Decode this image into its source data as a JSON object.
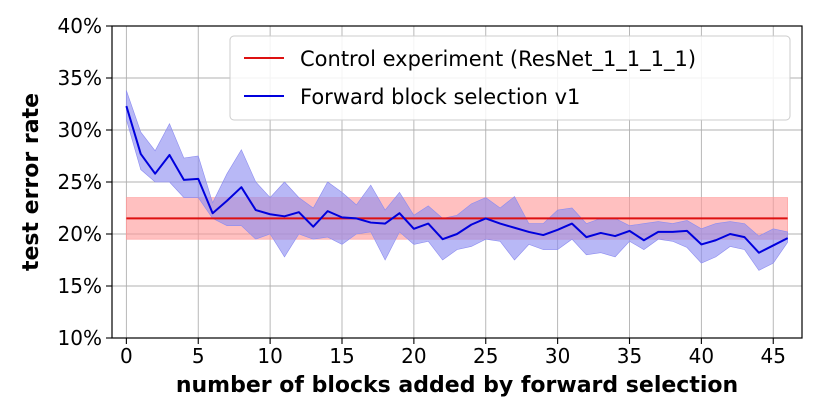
{
  "chart_data": {
    "type": "line",
    "xlabel": "number of blocks added by forward selection",
    "ylabel": "test error rate",
    "xlim": [
      -1,
      47
    ],
    "ylim": [
      10,
      40
    ],
    "xticks": [
      0,
      5,
      10,
      15,
      20,
      25,
      30,
      35,
      40,
      45
    ],
    "yticks": [
      10,
      15,
      20,
      25,
      30,
      35,
      40
    ],
    "yticklabels": [
      "10%",
      "15%",
      "20%",
      "25%",
      "30%",
      "35%",
      "40%"
    ],
    "grid": true,
    "legend_position": "top-right",
    "series": [
      {
        "name": "Control experiment (ResNet_1_1_1_1)",
        "color": "#dd1111",
        "band_color": "#ff9999",
        "x": [
          0,
          46
        ],
        "values": [
          21.5,
          21.5
        ],
        "lower": [
          19.5,
          19.5
        ],
        "upper": [
          23.5,
          23.5
        ]
      },
      {
        "name": "Forward block selection v1",
        "color": "#0000dd",
        "band_color": "#8c8cf0",
        "x": [
          0,
          1,
          2,
          3,
          4,
          5,
          6,
          7,
          8,
          9,
          10,
          11,
          12,
          13,
          14,
          15,
          16,
          17,
          18,
          19,
          20,
          21,
          22,
          23,
          24,
          25,
          26,
          27,
          28,
          29,
          30,
          31,
          32,
          33,
          34,
          35,
          36,
          37,
          38,
          39,
          40,
          41,
          42,
          43,
          44,
          45,
          46
        ],
        "values": [
          32.3,
          27.7,
          25.8,
          27.6,
          25.2,
          25.3,
          22.0,
          23.2,
          24.5,
          22.3,
          21.9,
          21.7,
          22.1,
          20.7,
          22.2,
          21.6,
          21.5,
          21.1,
          21.0,
          22.0,
          20.5,
          21.0,
          19.5,
          20.0,
          20.9,
          21.5,
          21.0,
          20.6,
          20.2,
          19.9,
          20.4,
          21.0,
          19.7,
          20.1,
          19.8,
          20.3,
          19.4,
          20.2,
          20.2,
          20.3,
          19.0,
          19.4,
          20.0,
          19.7,
          18.2,
          18.9,
          19.6
        ],
        "lower": [
          31.0,
          26.2,
          25.0,
          25.0,
          23.5,
          23.5,
          21.5,
          20.8,
          20.8,
          19.5,
          20.0,
          17.8,
          20.0,
          19.5,
          19.7,
          19.0,
          20.0,
          20.2,
          17.5,
          20.2,
          19.0,
          19.3,
          17.5,
          18.5,
          18.8,
          19.5,
          19.3,
          17.5,
          19.0,
          18.5,
          18.5,
          19.5,
          18.0,
          18.2,
          17.8,
          19.3,
          18.5,
          19.5,
          19.3,
          18.7,
          17.2,
          17.8,
          18.8,
          18.5,
          16.5,
          17.2,
          19.2
        ],
        "upper": [
          33.8,
          29.8,
          28.0,
          30.6,
          27.3,
          27.5,
          23.0,
          25.8,
          28.1,
          25.0,
          23.5,
          25.0,
          23.5,
          22.5,
          25.0,
          24.0,
          22.8,
          24.7,
          22.3,
          24.0,
          21.8,
          22.7,
          21.5,
          21.8,
          22.9,
          23.5,
          22.5,
          23.6,
          21.0,
          21.0,
          22.3,
          22.5,
          21.0,
          21.5,
          21.5,
          20.8,
          21.0,
          21.2,
          21.0,
          21.3,
          20.5,
          21.0,
          21.2,
          21.0,
          19.8,
          20.5,
          20.2
        ]
      }
    ]
  }
}
